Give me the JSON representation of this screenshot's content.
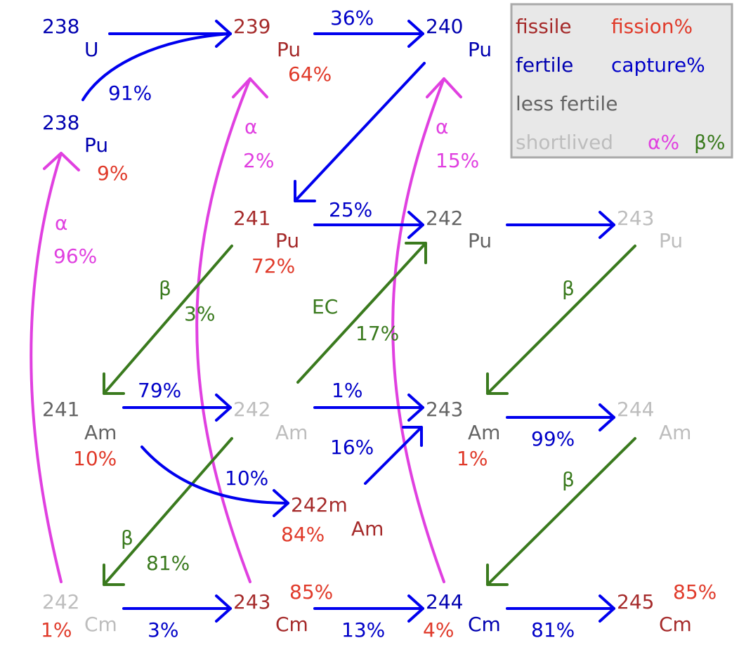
{
  "legend": {
    "fissile": "fissile",
    "fission_pct": "fission%",
    "fertile": "fertile",
    "capture_pct": "capture%",
    "less_fertile": "less fertile",
    "shortlived": "shortlived",
    "alpha_pct": "α%",
    "beta_pct": "β%"
  },
  "colors": {
    "fissile": "#a52a2a",
    "fertile": "#0000b0",
    "less_fertile": "#646464",
    "shortlived": "#bdbdbd",
    "fission": "#e03a2a",
    "capture": "#0000c8",
    "alpha": "#e040e0",
    "beta": "#3a7a1e",
    "capture_arrow": "#0000ee"
  },
  "nuclides": {
    "u238": {
      "mass": "238",
      "symbol": "U",
      "fission": ""
    },
    "pu238": {
      "mass": "238",
      "symbol": "Pu",
      "fission": "9%"
    },
    "pu239": {
      "mass": "239",
      "symbol": "Pu",
      "fission": "64%"
    },
    "pu240": {
      "mass": "240",
      "symbol": "Pu",
      "fission": ""
    },
    "pu241": {
      "mass": "241",
      "symbol": "Pu",
      "fission": "72%"
    },
    "pu242": {
      "mass": "242",
      "symbol": "Pu",
      "fission": ""
    },
    "pu243": {
      "mass": "243",
      "symbol": "Pu",
      "fission": ""
    },
    "am241": {
      "mass": "241",
      "symbol": "Am",
      "fission": "10%"
    },
    "am242": {
      "mass": "242",
      "symbol": "Am",
      "fission": ""
    },
    "am242m": {
      "mass": "242m",
      "symbol": "Am",
      "fission": "84%"
    },
    "am243": {
      "mass": "243",
      "symbol": "Am",
      "fission": "1%"
    },
    "am244": {
      "mass": "244",
      "symbol": "Am",
      "fission": ""
    },
    "cm242": {
      "mass": "242",
      "symbol": "Cm",
      "fission": "1%"
    },
    "cm243": {
      "mass": "243",
      "symbol": "Cm",
      "fission": "85%"
    },
    "cm244": {
      "mass": "244",
      "symbol": "Cm",
      "fission": "4%"
    },
    "cm245": {
      "mass": "245",
      "symbol": "Cm",
      "fission": "85%"
    }
  },
  "transitions": {
    "u238_pu238_capture": "91%",
    "pu239_pu240_capture": "36%",
    "pu241_pu242_capture": "25%",
    "am241_am242_capture": "79%",
    "am241_am242m_capture": "10%",
    "am242_am243_capture": "1%",
    "am242m_am243_capture": "16%",
    "am243_am244_capture": "99%",
    "cm242_cm243_capture": "3%",
    "cm243_cm244_capture": "13%",
    "cm244_cm245_capture": "81%",
    "pu238_alpha_label": "α",
    "pu238_alpha": "96%",
    "pu239_alpha_label": "α",
    "pu239_alpha": "2%",
    "pu240_alpha_label": "α",
    "pu240_alpha": "15%",
    "pu241_beta_label": "β",
    "pu241_beta": "3%",
    "am242_ec_label": "EC",
    "am242_ec": "17%",
    "am242_beta_label": "β",
    "am242_beta": "81%",
    "pu243_beta_label": "β",
    "am244_beta_label": "β"
  }
}
